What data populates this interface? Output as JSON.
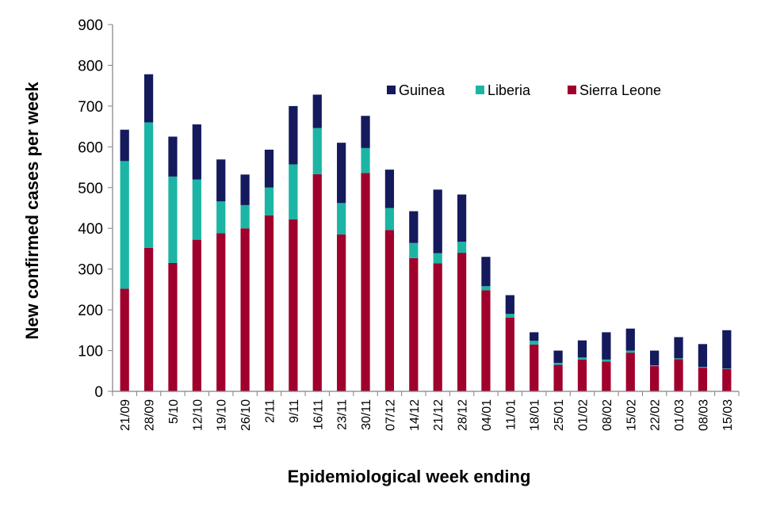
{
  "chart_data": {
    "type": "bar",
    "stacked": true,
    "title": "",
    "xlabel": "Epidemiological week ending",
    "ylabel": "New confirmed cases  per week",
    "ylim": [
      0,
      900
    ],
    "yticks": [
      0,
      100,
      200,
      300,
      400,
      500,
      600,
      700,
      800,
      900
    ],
    "legend_position": "top-right",
    "categories": [
      "21/09",
      "28/09",
      "5/10",
      "12/10",
      "19/10",
      "26/10",
      "2/11",
      "9/11",
      "16/11",
      "23/11",
      "30/11",
      "07/12",
      "14/12",
      "21/12",
      "28/12",
      "04/01",
      "11/01",
      "18/01",
      "25/01",
      "01/02",
      "08/02",
      "15/02",
      "22/02",
      "01/03",
      "08/03",
      "15/03"
    ],
    "series": [
      {
        "name": "Sierra Leone",
        "color": "#A0002C",
        "values": [
          252,
          352,
          315,
          372,
          388,
          400,
          432,
          422,
          533,
          385,
          536,
          396,
          327,
          314,
          340,
          248,
          181,
          115,
          65,
          78,
          73,
          95,
          62,
          79,
          58,
          55
        ]
      },
      {
        "name": "Liberia",
        "color": "#1CB5A5",
        "values": [
          313,
          308,
          212,
          148,
          78,
          57,
          68,
          135,
          113,
          77,
          61,
          54,
          37,
          25,
          27,
          10,
          9,
          9,
          5,
          5,
          5,
          5,
          2,
          2,
          2,
          1
        ]
      },
      {
        "name": "Guinea",
        "color": "#141A5C",
        "values": [
          77,
          118,
          98,
          135,
          103,
          75,
          93,
          143,
          82,
          148,
          79,
          94,
          78,
          156,
          116,
          72,
          46,
          21,
          30,
          42,
          67,
          54,
          36,
          52,
          56,
          94
        ]
      }
    ],
    "legend_order": [
      "Guinea",
      "Liberia",
      "Sierra Leone"
    ]
  }
}
